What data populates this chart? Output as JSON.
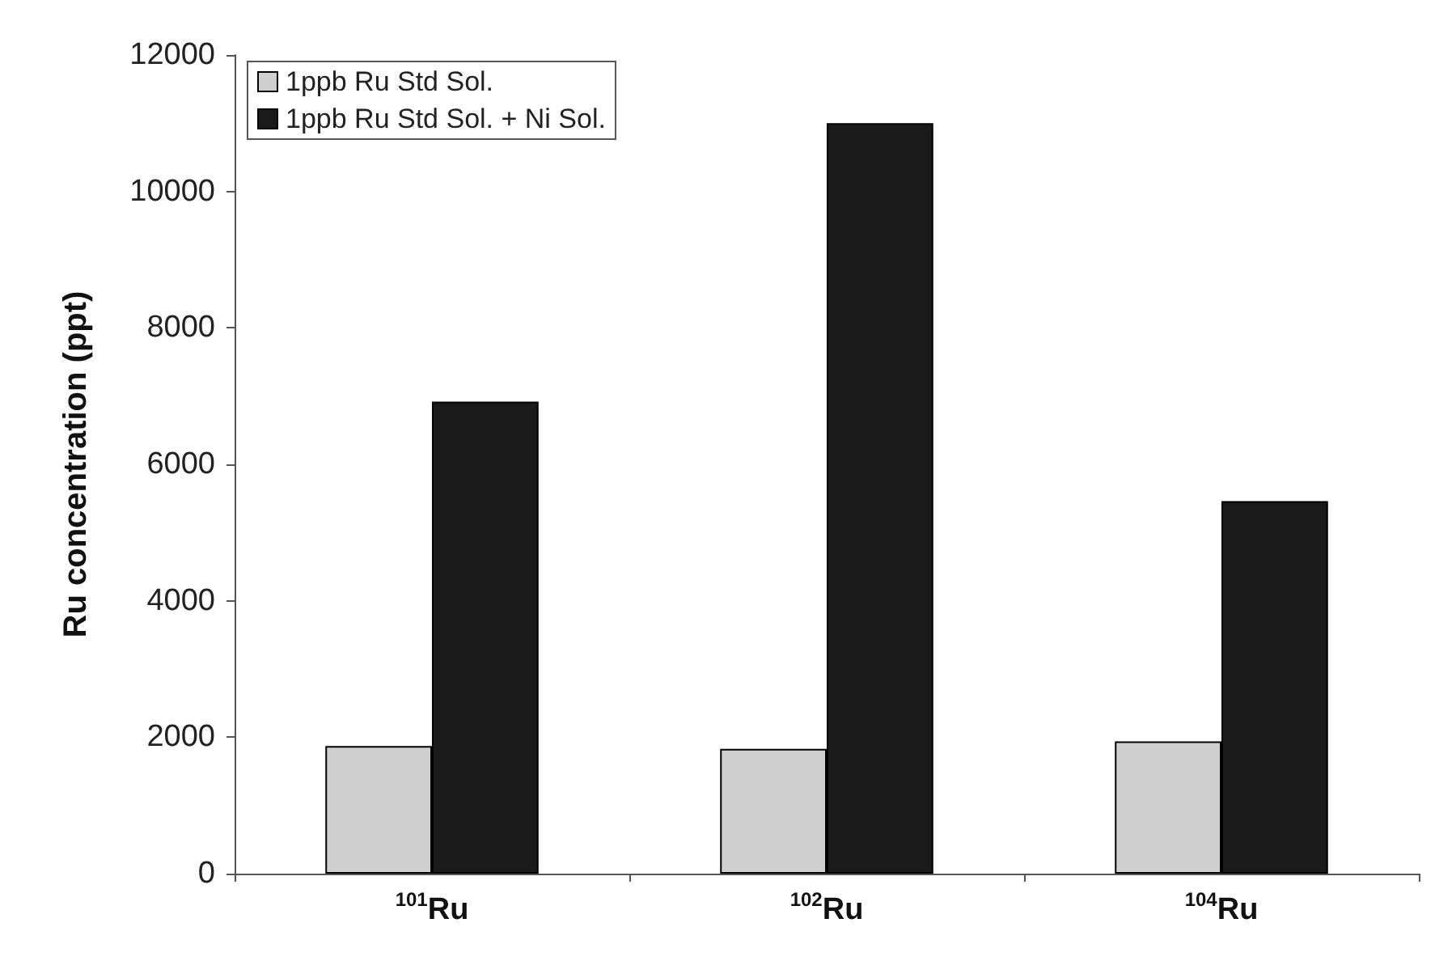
{
  "chart_data": {
    "type": "bar",
    "ylabel": "Ru concentration (ppt)",
    "categories": [
      "$^{101}$Ru",
      "$^{102}$Ru",
      "$^{104}$Ru"
    ],
    "series": [
      {
        "name": "1ppb Ru Std Sol.",
        "color": "#cfcfcf",
        "values": [
          1870,
          1830,
          1940
        ]
      },
      {
        "name": "1ppb Ru Std Sol. + Ni Sol.",
        "color": "#1a1a1a",
        "values": [
          6920,
          11000,
          5460
        ]
      }
    ],
    "ylim": [
      0,
      12000
    ],
    "yticks": [
      0,
      2000,
      4000,
      6000,
      8000,
      10000,
      12000
    ],
    "grid": false,
    "legend": "top left"
  }
}
